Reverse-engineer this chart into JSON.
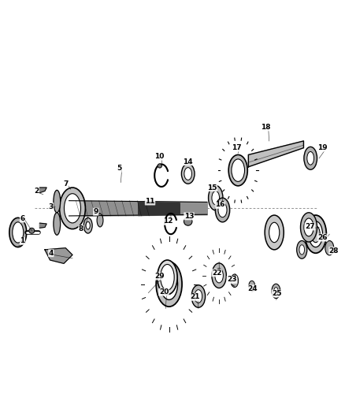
{
  "bg_color": "#ffffff",
  "line_color": "#000000",
  "gray_light": "#cccccc",
  "gray_mid": "#888888",
  "gray_dark": "#444444",
  "figsize": [
    4.38,
    5.33
  ],
  "dpi": 100
}
